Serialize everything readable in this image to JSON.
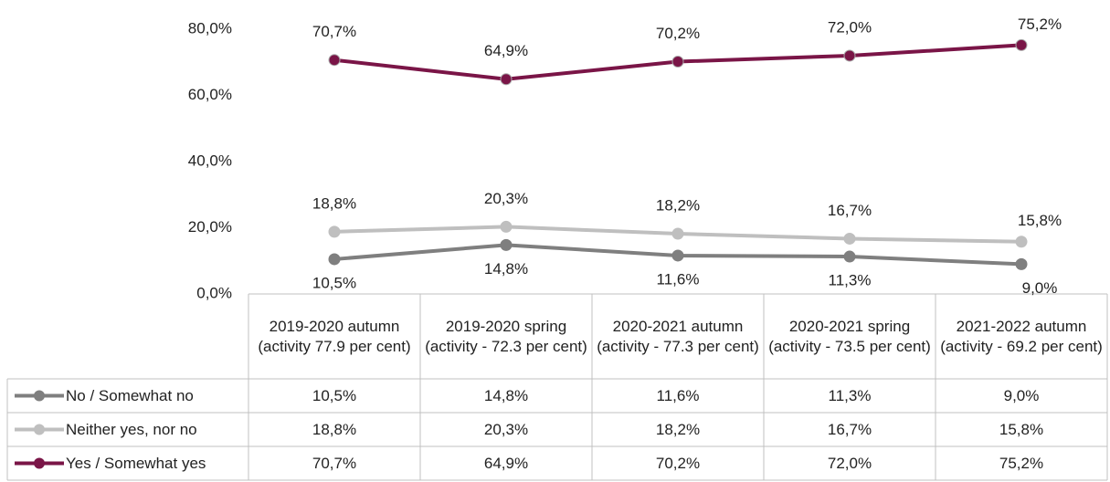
{
  "chart_data": {
    "type": "line",
    "categories": [
      "2019-2020 autumn (activity 77.9 per cent)",
      "2019-2020 spring (activity - 72.3 per cent)",
      "2020-2021 autumn (activity - 77.3 per cent)",
      "2020-2021 spring (activity - 73.5 per cent)",
      "2021-2022 autumn (activity - 69.2 per cent)"
    ],
    "series": [
      {
        "name": "No / Somewhat no",
        "color": "#7f7f7f",
        "values": [
          10.5,
          14.8,
          11.6,
          11.3,
          9.0
        ],
        "value_labels": [
          "10,5%",
          "14,8%",
          "11,6%",
          "11,3%",
          "9,0%"
        ]
      },
      {
        "name": "Neither yes, nor no",
        "color": "#bfbfbf",
        "values": [
          18.8,
          20.3,
          18.2,
          16.7,
          15.8
        ],
        "value_labels": [
          "18,8%",
          "20,3%",
          "18,2%",
          "16,7%",
          "15,8%"
        ]
      },
      {
        "name": "Yes / Somewhat yes",
        "color": "#7a1547",
        "values": [
          70.7,
          64.9,
          70.2,
          72.0,
          75.2
        ],
        "value_labels": [
          "70,7%",
          "64,9%",
          "70,2%",
          "72,0%",
          "75,2%"
        ]
      }
    ],
    "ylim": [
      0,
      80
    ],
    "yticks": [
      {
        "value": 0,
        "label": "0,0%"
      },
      {
        "value": 20,
        "label": "20,0%"
      },
      {
        "value": 40,
        "label": "40,0%"
      },
      {
        "value": 60,
        "label": "60,0%"
      },
      {
        "value": 80,
        "label": "80,0%"
      }
    ],
    "grid": false
  }
}
